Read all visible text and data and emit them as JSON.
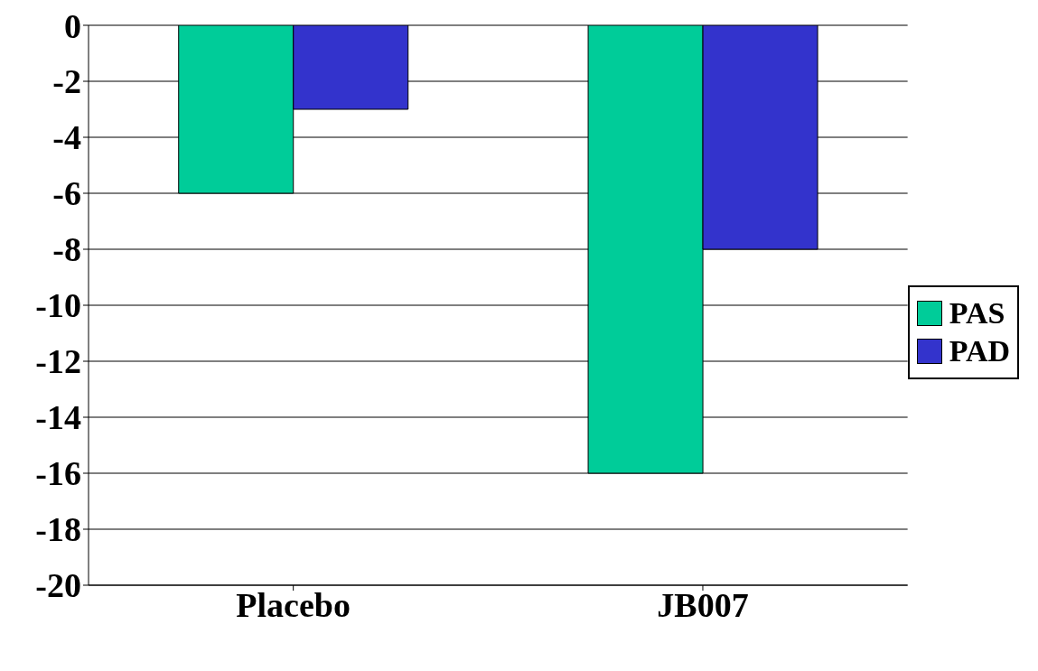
{
  "chart_data": {
    "type": "bar",
    "categories": [
      "Placebo",
      "JB007"
    ],
    "series": [
      {
        "name": "PAS",
        "color": "#00cc99",
        "values": [
          -6,
          -16
        ]
      },
      {
        "name": "PAD",
        "color": "#3333cc",
        "values": [
          -3,
          -8
        ]
      }
    ],
    "ylim": [
      -20,
      0
    ],
    "yticks": [
      -20,
      -18,
      -16,
      -14,
      -12,
      -10,
      -8,
      -6,
      -4,
      -2,
      0
    ],
    "grid": "y",
    "legend": "right"
  }
}
